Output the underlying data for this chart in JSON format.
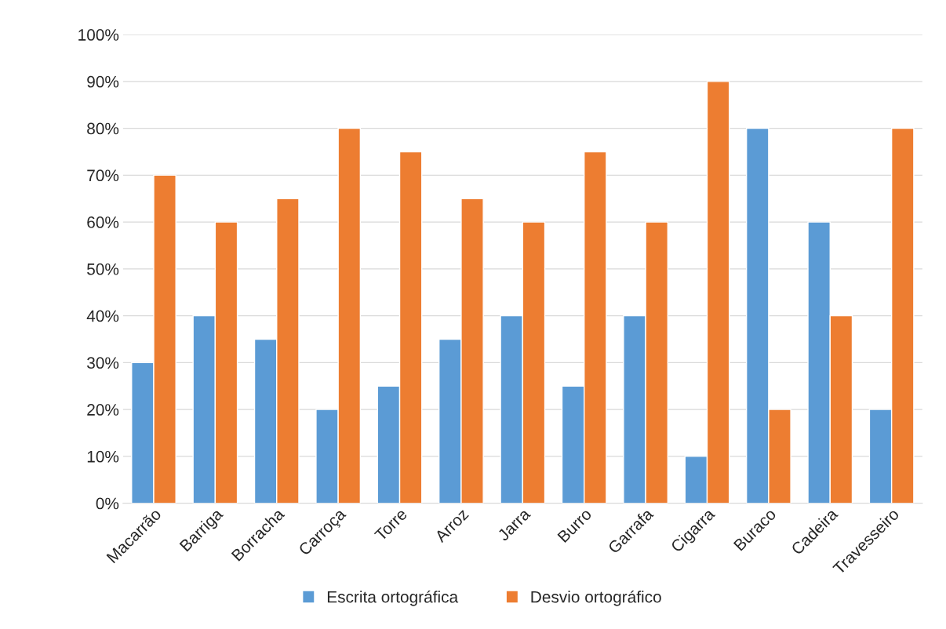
{
  "chart_data": {
    "type": "bar",
    "categories": [
      "Macarrão",
      "Barriga",
      "Borracha",
      "Carroça",
      "Torre",
      "Arroz",
      "Jarra",
      "Burro",
      "Garrafa",
      "Cigarra",
      "Buraco",
      "Cadeira",
      "Travesseiro"
    ],
    "series": [
      {
        "name": "Escrita ortográfica",
        "color": "#5b9bd5",
        "values": [
          30,
          40,
          35,
          20,
          25,
          35,
          40,
          25,
          40,
          10,
          80,
          60,
          20
        ]
      },
      {
        "name": "Desvio ortográfico",
        "color": "#ed7d31",
        "values": [
          70,
          60,
          65,
          80,
          75,
          65,
          60,
          75,
          60,
          90,
          20,
          40,
          80
        ]
      }
    ],
    "ylim": [
      0,
      100
    ],
    "yticks": [
      {
        "value": 0,
        "label": "0%"
      },
      {
        "value": 10,
        "label": "10%"
      },
      {
        "value": 20,
        "label": "20%"
      },
      {
        "value": 30,
        "label": "30%"
      },
      {
        "value": 40,
        "label": "40%"
      },
      {
        "value": 50,
        "label": "50%"
      },
      {
        "value": 60,
        "label": "60%"
      },
      {
        "value": 70,
        "label": "70%"
      },
      {
        "value": 80,
        "label": "80%"
      },
      {
        "value": 90,
        "label": "90%"
      },
      {
        "value": 100,
        "label": "100%"
      }
    ],
    "grid": "y",
    "legend": "bottom"
  }
}
